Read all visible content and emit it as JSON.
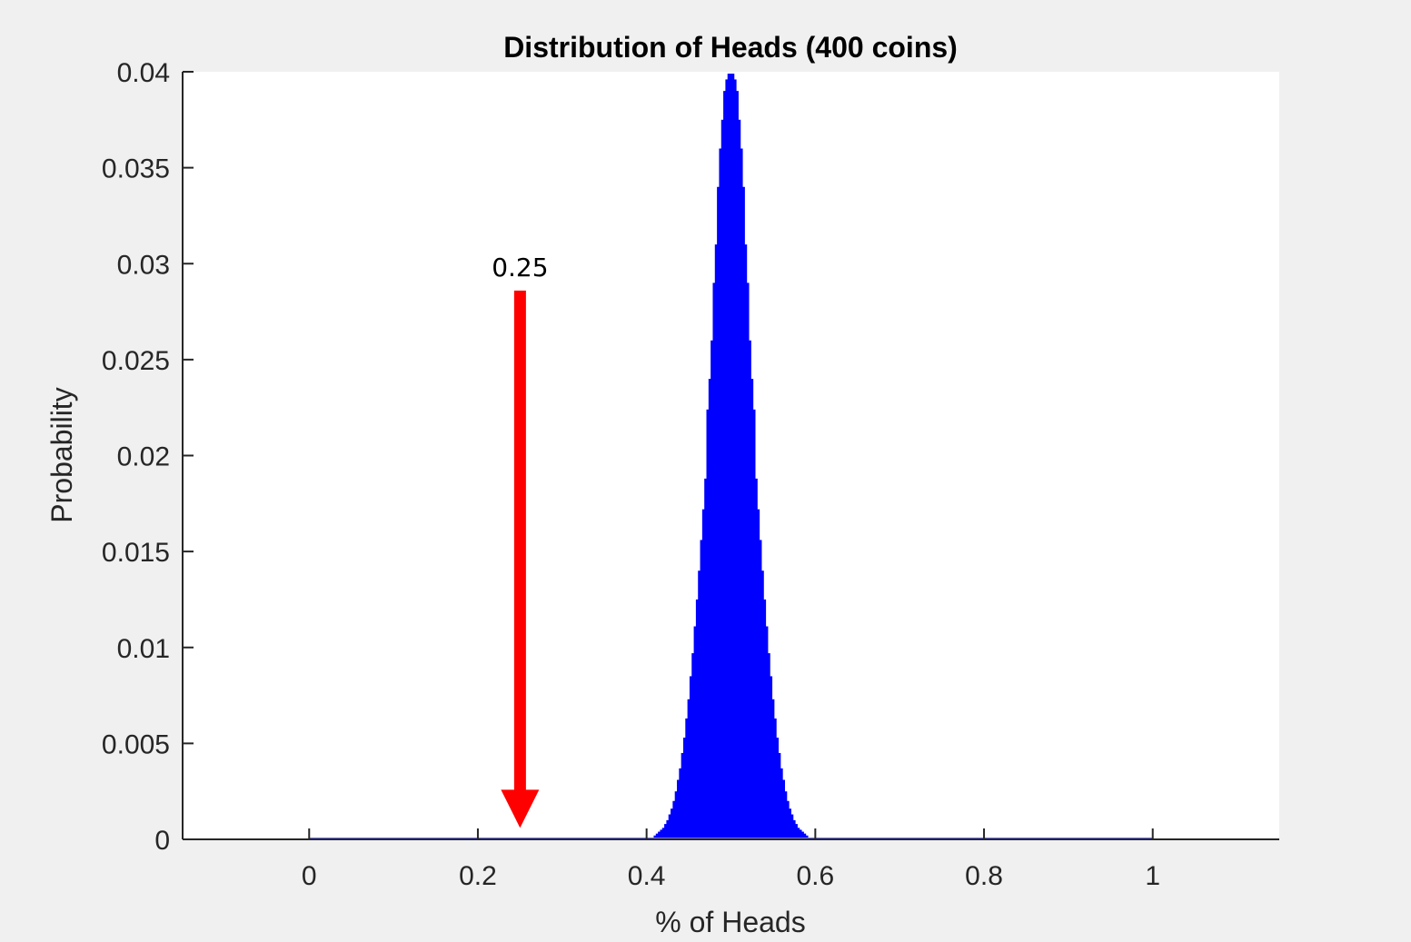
{
  "chart_data": {
    "type": "bar",
    "title": "Distribution of Heads (400 coins)",
    "xlabel": "% of Heads",
    "ylabel": "Probability",
    "xlim": [
      -0.15,
      1.15
    ],
    "ylim": [
      0,
      0.04
    ],
    "xticks": [
      0,
      0.2,
      0.4,
      0.6,
      0.8,
      1
    ],
    "xtick_labels": [
      "0",
      "0.2",
      "0.4",
      "0.6",
      "0.8",
      "1"
    ],
    "yticks": [
      0,
      0.005,
      0.01,
      0.015,
      0.02,
      0.025,
      0.03,
      0.035,
      0.04
    ],
    "ytick_labels": [
      "0",
      "0.005",
      "0.01",
      "0.015",
      "0.02",
      "0.025",
      "0.03",
      "0.035",
      "0.04"
    ],
    "grid": false,
    "series": [
      {
        "color": "#0000ff",
        "x": [
          0.41,
          0.4125,
          0.415,
          0.4175,
          0.42,
          0.4225,
          0.425,
          0.4275,
          0.43,
          0.4325,
          0.435,
          0.4375,
          0.44,
          0.4425,
          0.445,
          0.4475,
          0.45,
          0.4525,
          0.455,
          0.4575,
          0.46,
          0.4625,
          0.465,
          0.4675,
          0.47,
          0.4725,
          0.475,
          0.4775,
          0.48,
          0.4825,
          0.485,
          0.4875,
          0.49,
          0.4925,
          0.495,
          0.4975,
          0.5,
          0.5025,
          0.505,
          0.5075,
          0.51,
          0.5125,
          0.515,
          0.5175,
          0.52,
          0.5225,
          0.525,
          0.5275,
          0.53,
          0.5325,
          0.535,
          0.5375,
          0.54,
          0.5425,
          0.545,
          0.5475,
          0.55,
          0.5525,
          0.555,
          0.5575,
          0.56,
          0.5625,
          0.565,
          0.5675,
          0.57,
          0.5725,
          0.575,
          0.5775,
          0.58,
          0.5825,
          0.585,
          0.5875,
          0.59
        ],
        "values": [
          0.0002,
          0.0003,
          0.0004,
          0.0005,
          0.0006,
          0.0008,
          0.001,
          0.0013,
          0.0016,
          0.002,
          0.0025,
          0.0031,
          0.0037,
          0.0045,
          0.0053,
          0.0063,
          0.0073,
          0.0085,
          0.0097,
          0.0111,
          0.0125,
          0.014,
          0.0156,
          0.0172,
          0.0188,
          0.0224,
          0.024,
          0.026,
          0.029,
          0.031,
          0.034,
          0.036,
          0.0375,
          0.039,
          0.0396,
          0.0399,
          0.0399,
          0.0399,
          0.0396,
          0.039,
          0.0375,
          0.036,
          0.034,
          0.031,
          0.029,
          0.026,
          0.024,
          0.0224,
          0.0188,
          0.0172,
          0.0156,
          0.014,
          0.0125,
          0.0111,
          0.0097,
          0.0085,
          0.0073,
          0.0063,
          0.0053,
          0.0045,
          0.0037,
          0.0031,
          0.0025,
          0.002,
          0.0016,
          0.0013,
          0.001,
          0.0008,
          0.0006,
          0.0005,
          0.0004,
          0.0003,
          0.0002
        ]
      }
    ],
    "baseline": {
      "from": 0,
      "to": 1,
      "color": "#7070ff"
    },
    "annotation": {
      "text": "0.25",
      "x": 0.25,
      "arrow_from_y": 0.0286,
      "arrow_to_y": 0.0006,
      "color": "#ff0000"
    }
  }
}
